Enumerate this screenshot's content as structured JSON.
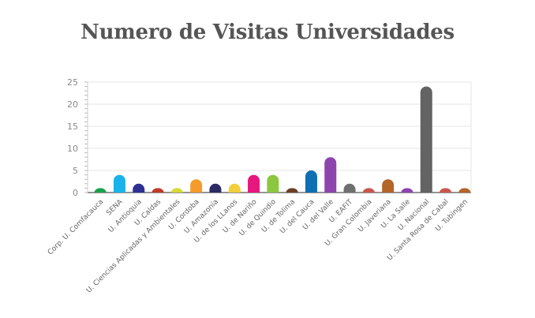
{
  "chart_data": {
    "type": "bar",
    "title": "Numero de Visitas Universidades",
    "xlabel": "",
    "ylabel": "",
    "ylim": [
      0,
      25
    ],
    "yticks": [
      0,
      5,
      10,
      15,
      20,
      25
    ],
    "grid": true,
    "categories": [
      "Corp. U. Comfacauca",
      "SENA",
      "U. Antioquia",
      "U. Caldas",
      "U. Ciencias Aplicadas y Ambientales",
      "U. Cordoba",
      "U. Amazonía",
      "U. de los LLanos",
      "U. de Nariño",
      "U. de Quindio",
      "U. de Tolima",
      "U. del Cauca",
      "U. del Valle",
      "U. EAFIT",
      "U. Gran Colombia",
      "U. Javeriana",
      "U. La Salle",
      "U. Nacional",
      "U. Santa Rosa de Cabal",
      "U. Tubingen"
    ],
    "values": [
      1,
      4,
      2,
      1,
      1,
      3,
      2,
      2,
      4,
      4,
      1,
      5,
      8,
      2,
      1,
      3,
      1,
      24,
      1,
      1
    ],
    "colors": [
      "#1aa14a",
      "#1ab2ea",
      "#2e3192",
      "#c0392b",
      "#d8d936",
      "#f39c2c",
      "#2b2b63",
      "#f1cf3a",
      "#e6177d",
      "#8dc63f",
      "#6b3f23",
      "#0f6fb3",
      "#8e44ad",
      "#6f6f6f",
      "#c9564d",
      "#b3652a",
      "#8e44ad",
      "#636363",
      "#c9564d",
      "#b3652a"
    ]
  }
}
